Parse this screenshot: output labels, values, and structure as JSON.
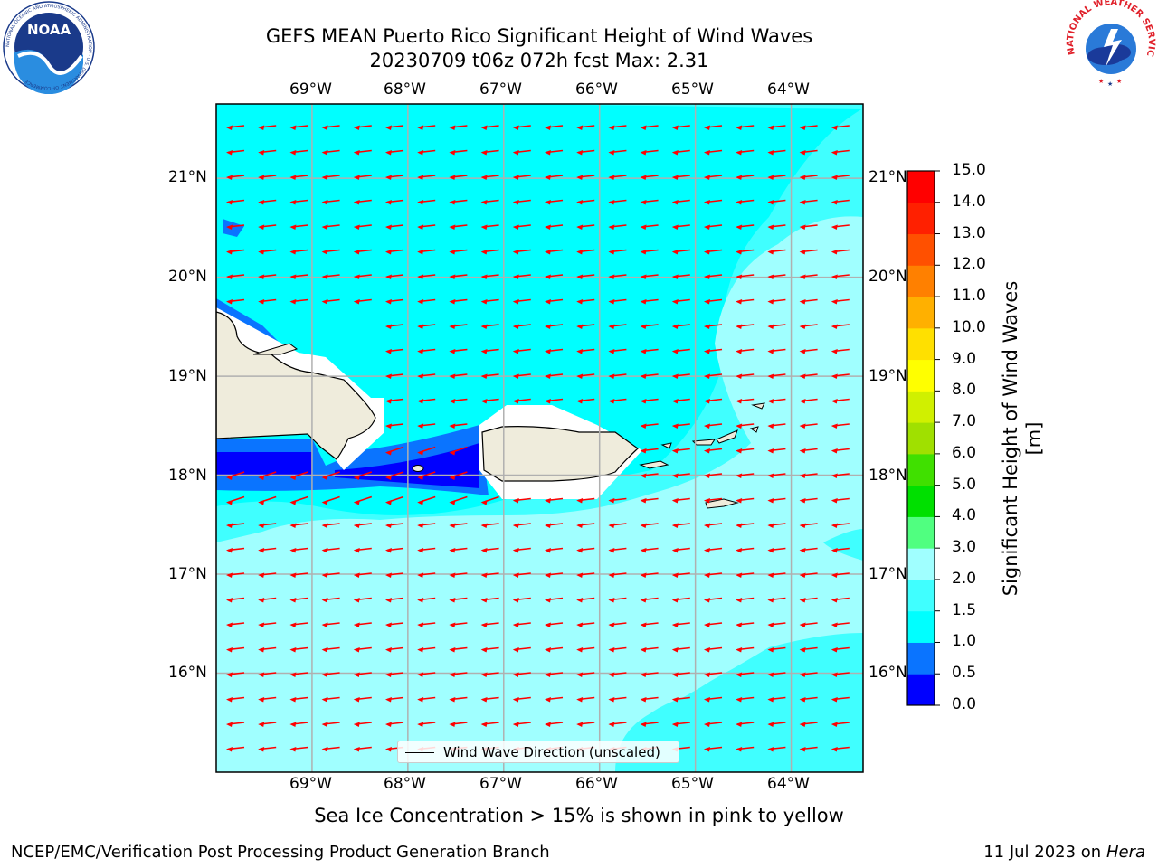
{
  "header": {
    "title_line1": "GEFS MEAN Puerto Rico Significant Height of Wind Waves",
    "title_line2": "20230709 t06z 072h fcst   Max: 2.31"
  },
  "logos": {
    "noaa": "NOAA",
    "noaa_ring": "NATIONAL OCEANIC AND ATMOSPHERIC ADMINISTRATION · U.S. DEPARTMENT OF COMMERCE",
    "nws_ring": "NATIONAL WEATHER SERVICE"
  },
  "map": {
    "lon_labels": [
      "69°W",
      "68°W",
      "67°W",
      "66°W",
      "65°W",
      "64°W"
    ],
    "lat_labels": [
      "21°N",
      "20°N",
      "19°N",
      "18°N",
      "17°N",
      "16°N"
    ],
    "lon_values": [
      -69,
      -68,
      -67,
      -66,
      -65,
      -64
    ],
    "lat_values": [
      21,
      20,
      19,
      18,
      17,
      16
    ],
    "extent": {
      "lon_min": -70,
      "lon_max": -63.25,
      "lat_min": 15.0,
      "lat_max": 21.75
    },
    "arrow_color": "#ff0000",
    "ocean_color": "#00ffff",
    "land_color": "#efecdc",
    "legend_label": "Wind Wave Direction (unscaled)",
    "max_value": 2.31
  },
  "colorbar": {
    "title": "Significant Height of Wind Waves [m]",
    "tick_labels": [
      "0.0",
      "0.5",
      "1.0",
      "1.5",
      "2.0",
      "3.0",
      "4.0",
      "5.0",
      "6.0",
      "7.0",
      "8.0",
      "9.0",
      "10.0",
      "11.0",
      "12.0",
      "13.0",
      "14.0",
      "15.0"
    ],
    "colors": [
      "#0000ff",
      "#0a74ff",
      "#00ffff",
      "#40ffff",
      "#a0ffff",
      "#50ff80",
      "#00e000",
      "#40e000",
      "#a0e000",
      "#d0f000",
      "#ffff00",
      "#ffe000",
      "#ffb000",
      "#ff8000",
      "#ff5000",
      "#ff2000",
      "#ff0000"
    ]
  },
  "caption": "Sea Ice Concentration > 15% is shown in pink to yellow",
  "footer": {
    "left": "NCEP/EMC/Verification Post Processing Product Generation Branch",
    "right_prefix": "11 Jul 2023 on ",
    "right_host": "Hera"
  }
}
